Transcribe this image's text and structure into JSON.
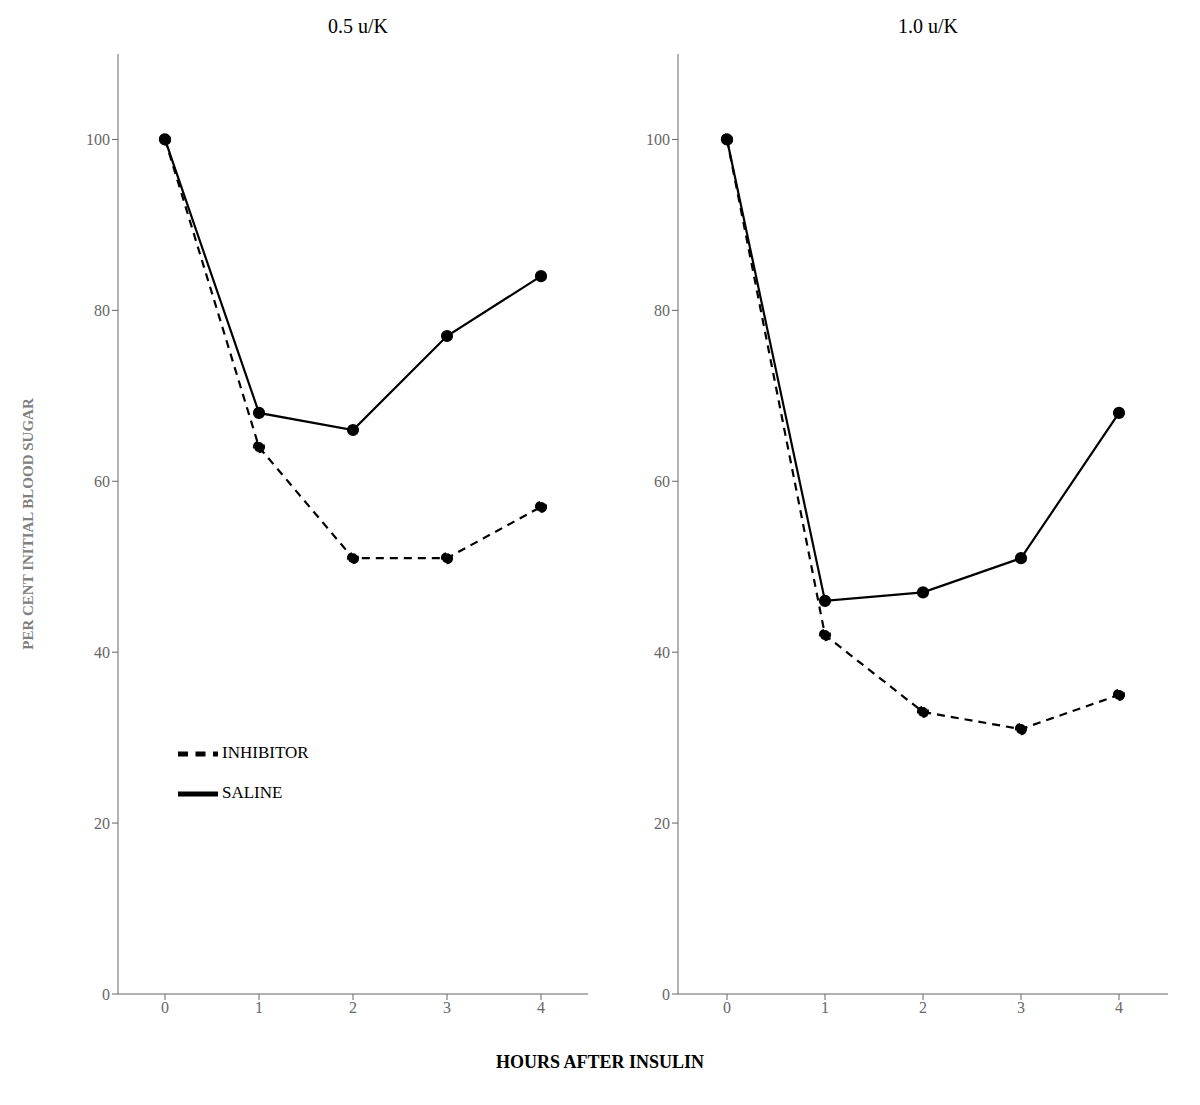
{
  "chart_data": [
    {
      "type": "line",
      "title": "0.5 u/K",
      "xlabel": "HOURS AFTER INSULIN",
      "ylabel": "PER CENT INITIAL BLOOD SUGAR",
      "x": [
        0,
        1,
        2,
        3,
        4
      ],
      "series": [
        {
          "name": "SALINE",
          "color": "#000000",
          "marker": "circle",
          "line_style": "solid",
          "values": [
            100,
            68,
            66,
            77,
            84
          ]
        },
        {
          "name": "INHIBITOR",
          "color": "#000000",
          "marker": "circle",
          "line_style": "dashed",
          "values": [
            100,
            64,
            51,
            51,
            57
          ]
        }
      ],
      "xlim": [
        -0.5,
        4.5
      ],
      "xticks": [
        0,
        1,
        2,
        3,
        4
      ],
      "ylim": [
        0,
        110
      ],
      "yticks": [
        0,
        20,
        40,
        60,
        80,
        100
      ],
      "grid": false,
      "legend": "lower left"
    },
    {
      "type": "line",
      "title": "1.0 u/K",
      "x": [
        0,
        1,
        2,
        3,
        4
      ],
      "series": [
        {
          "name": "SALINE",
          "color": "#000000",
          "marker": "circle",
          "line_style": "solid",
          "values": [
            100,
            46,
            47,
            51,
            68
          ]
        },
        {
          "name": "INHIBITOR",
          "color": "#000000",
          "marker": "circle",
          "line_style": "dashed",
          "values": [
            100,
            42,
            33,
            31,
            35
          ]
        }
      ],
      "xlim": [
        -0.5,
        4.5
      ],
      "xticks": [
        0,
        1,
        2,
        3,
        4
      ],
      "ylim": [
        0,
        110
      ],
      "yticks": [
        0,
        20,
        40,
        60,
        80,
        100
      ],
      "grid": false
    }
  ]
}
